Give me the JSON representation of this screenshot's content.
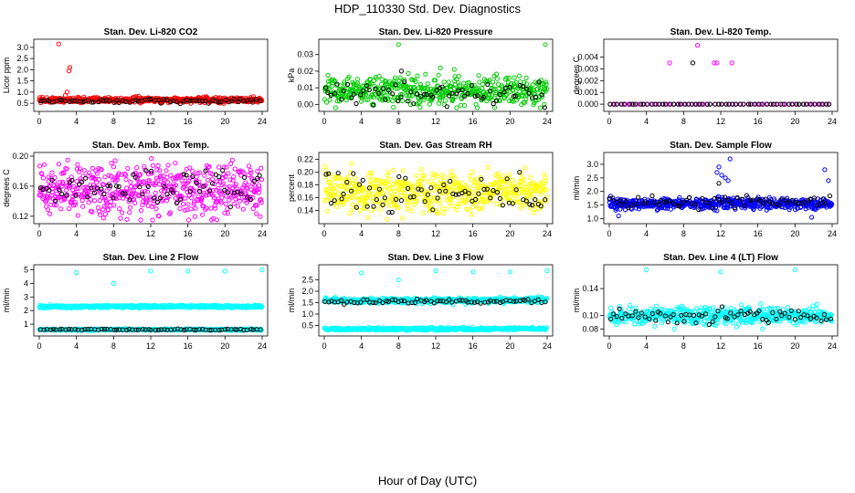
{
  "main_title": "HDP_110330  Std. Dev. Diagnostics",
  "x_axis_label": "Hour of Day (UTC)",
  "chart_data": [
    {
      "type": "scatter",
      "title": "Stan. Dev. Li-820 CO2",
      "ylabel": "Licor ppm",
      "color": "#ff0000",
      "xlim": [
        0,
        24
      ],
      "xticks": [
        0,
        4,
        8,
        12,
        16,
        20,
        24
      ],
      "ylim": [
        0.3,
        3.2
      ],
      "yticks": [
        "0.5",
        "1.0",
        "1.5",
        "2.0",
        "2.5",
        "3.0"
      ],
      "series": [
        {
          "name": "colored",
          "base": 0.65,
          "noise": 0.06,
          "count": 480,
          "outliers": [
            [
              2.1,
              3.15
            ],
            [
              3.3,
              2.1
            ],
            [
              3.2,
              1.95
            ],
            [
              2.8,
              0.85
            ],
            [
              3.0,
              1.0
            ]
          ]
        },
        {
          "name": "black",
          "base": 0.6,
          "noise": 0.05,
          "count": 70,
          "outliers": []
        }
      ]
    },
    {
      "type": "scatter",
      "title": "Stan. Dev. Li-820 Pressure",
      "ylabel": "kPa",
      "color": "#00cc00",
      "xlim": [
        0,
        24
      ],
      "xticks": [
        0,
        4,
        8,
        12,
        16,
        20,
        24
      ],
      "ylim": [
        -0.002,
        0.037
      ],
      "yticks": [
        "0.00",
        "0.01",
        "0.02",
        "0.03"
      ],
      "series": [
        {
          "name": "colored",
          "base": 0.008,
          "noise": 0.004,
          "count": 500,
          "outliers": [
            [
              8.0,
              0.036
            ],
            [
              23.8,
              0.036
            ],
            [
              12.5,
              0.022
            ],
            [
              14.0,
              0.021
            ]
          ]
        },
        {
          "name": "black",
          "base": 0.006,
          "noise": 0.003,
          "count": 70,
          "outliers": [
            [
              8.3,
              0.02
            ]
          ]
        }
      ]
    },
    {
      "type": "scatter",
      "title": "Stan. Dev. Li-820 Temp.",
      "ylabel": "degrees C",
      "color": "#ff00ff",
      "xlim": [
        0,
        24
      ],
      "xticks": [
        0,
        4,
        8,
        12,
        16,
        20,
        24
      ],
      "ylim": [
        -0.0003,
        0.0052
      ],
      "yticks": [
        "0.000",
        "0.001",
        "0.002",
        "0.003",
        "0.004"
      ],
      "series": [
        {
          "name": "colored",
          "base": 0.0,
          "noise": 0.0,
          "count": 60,
          "outliers": [
            [
              6.5,
              0.0035
            ],
            [
              9.5,
              0.005
            ],
            [
              11.3,
              0.0035
            ],
            [
              11.6,
              0.0035
            ],
            [
              13.2,
              0.0035
            ]
          ]
        },
        {
          "name": "black",
          "base": 0.0,
          "noise": 0.0,
          "count": 60,
          "outliers": [
            [
              9.0,
              0.0035
            ]
          ]
        }
      ]
    },
    {
      "type": "scatter",
      "title": "Stan. Dev. Amb. Box Temp.",
      "ylabel": "degrees C",
      "color": "#ff00ff",
      "xlim": [
        0,
        24
      ],
      "xticks": [
        0,
        4,
        8,
        12,
        16,
        20,
        24
      ],
      "ylim": [
        0.115,
        0.2
      ],
      "yticks": [
        "0.12",
        "0.16",
        "0.20"
      ],
      "series": [
        {
          "name": "colored",
          "base": 0.155,
          "noise": 0.017,
          "count": 550,
          "outliers": []
        },
        {
          "name": "black",
          "base": 0.155,
          "noise": 0.012,
          "count": 70,
          "outliers": []
        }
      ]
    },
    {
      "type": "scatter",
      "title": "Stan. Dev. Gas Stream RH",
      "ylabel": "percent",
      "color": "#ffff00",
      "xlim": [
        0,
        24
      ],
      "xticks": [
        0,
        4,
        8,
        12,
        16,
        20,
        24
      ],
      "ylim": [
        0.125,
        0.225
      ],
      "yticks": [
        "0.14",
        "0.16",
        "0.18",
        "0.20",
        "0.22"
      ],
      "series": [
        {
          "name": "colored",
          "base": 0.17,
          "noise": 0.015,
          "count": 560,
          "outliers": []
        },
        {
          "name": "black",
          "base": 0.165,
          "noise": 0.015,
          "count": 70,
          "outliers": []
        }
      ]
    },
    {
      "type": "scatter",
      "title": "Stan. Dev. Sample Flow",
      "ylabel": "ml/min",
      "color": "#0000ff",
      "xlim": [
        0,
        24
      ],
      "xticks": [
        0,
        4,
        8,
        12,
        16,
        20,
        24
      ],
      "ylim": [
        0.95,
        3.3
      ],
      "yticks": [
        "1.0",
        "1.5",
        "2.0",
        "2.5",
        "3.0"
      ],
      "series": [
        {
          "name": "colored",
          "base": 1.55,
          "noise": 0.1,
          "count": 560,
          "outliers": [
            [
              11.6,
              2.7
            ],
            [
              11.8,
              2.9
            ],
            [
              12.1,
              2.6
            ],
            [
              12.5,
              2.5
            ],
            [
              13.0,
              3.2
            ],
            [
              12.8,
              2.4
            ],
            [
              23.2,
              2.8
            ],
            [
              23.6,
              2.4
            ],
            [
              1.0,
              1.1
            ],
            [
              21.8,
              1.05
            ]
          ]
        },
        {
          "name": "black",
          "base": 1.6,
          "noise": 0.12,
          "count": 70,
          "outliers": [
            [
              11.8,
              2.3
            ]
          ]
        }
      ]
    },
    {
      "type": "scatter",
      "title": "Stan. Dev. Line 2 Flow",
      "ylabel": "ml/min",
      "color": "#00ffff",
      "xlim": [
        0,
        24
      ],
      "xticks": [
        0,
        4,
        8,
        12,
        16,
        20,
        24
      ],
      "ylim": [
        0.4,
        5.1
      ],
      "yticks": [
        "1",
        "2",
        "3",
        "4",
        "5"
      ],
      "series": [
        {
          "name": "colored",
          "base": 2.3,
          "noise": 0.05,
          "count": 500,
          "outliers": [
            [
              4.0,
              4.8
            ],
            [
              8.0,
              4.0
            ],
            [
              12.0,
              4.9
            ],
            [
              16.0,
              4.9
            ],
            [
              20.0,
              4.9
            ],
            [
              24.0,
              5.0
            ]
          ]
        },
        {
          "name": "colored-low",
          "base": 0.6,
          "noise": 0.03,
          "count": 400,
          "outliers": []
        },
        {
          "name": "black",
          "base": 0.6,
          "noise": 0.02,
          "count": 70,
          "outliers": []
        }
      ]
    },
    {
      "type": "scatter",
      "title": "Stan. Dev. Line 3 Flow",
      "ylabel": "ml/min",
      "color": "#00ffff",
      "xlim": [
        0,
        24
      ],
      "xticks": [
        0,
        4,
        8,
        12,
        16,
        20,
        24
      ],
      "ylim": [
        0.2,
        3.0
      ],
      "yticks": [
        "0.5",
        "1.0",
        "1.5",
        "2.0",
        "2.5"
      ],
      "series": [
        {
          "name": "colored",
          "base": 1.6,
          "noise": 0.06,
          "count": 480,
          "outliers": [
            [
              4.0,
              2.8
            ],
            [
              8.0,
              2.5
            ],
            [
              12.0,
              2.9
            ],
            [
              16.0,
              2.85
            ],
            [
              20.0,
              2.85
            ],
            [
              24.0,
              2.9
            ]
          ]
        },
        {
          "name": "colored-low",
          "base": 0.35,
          "noise": 0.03,
          "count": 420,
          "outliers": []
        },
        {
          "name": "black",
          "base": 1.55,
          "noise": 0.05,
          "count": 70,
          "outliers": []
        }
      ]
    },
    {
      "type": "scatter",
      "title": "Stan. Dev. Line 4 (LT) Flow",
      "ylabel": "ml/min",
      "color": "#00ffff",
      "xlim": [
        0,
        24
      ],
      "xticks": [
        0,
        4,
        8,
        12,
        16,
        20,
        24
      ],
      "ylim": [
        0.075,
        0.17
      ],
      "yticks": [
        "0.08",
        "0.10",
        "0.14"
      ],
      "series": [
        {
          "name": "colored",
          "base": 0.1,
          "noise": 0.006,
          "count": 540,
          "outliers": [
            [
              4.0,
              0.168
            ],
            [
              12.0,
              0.165
            ],
            [
              20.0,
              0.168
            ],
            [
              7.0,
              0.08
            ],
            [
              16.5,
              0.08
            ]
          ]
        },
        {
          "name": "black",
          "base": 0.1,
          "noise": 0.005,
          "count": 70,
          "outliers": []
        }
      ]
    }
  ]
}
